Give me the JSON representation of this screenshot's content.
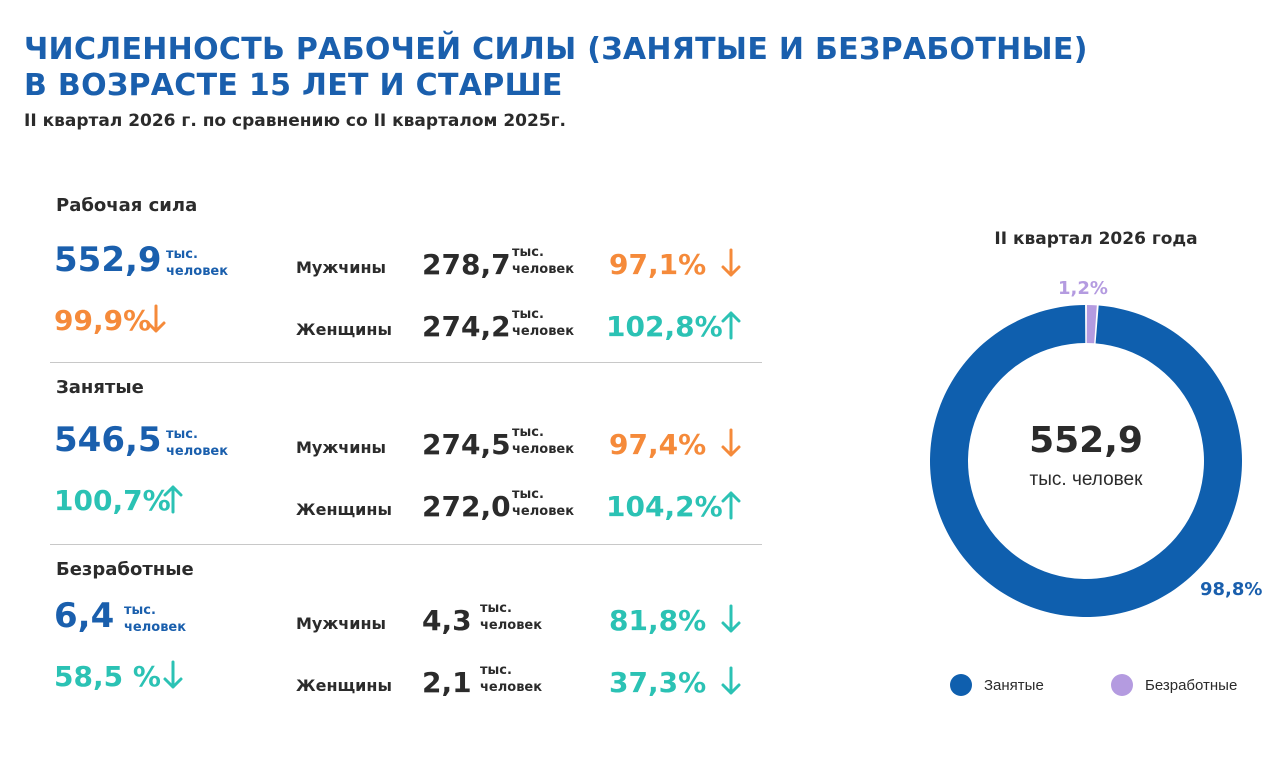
{
  "header": {
    "title_line1": "ЧИСЛЕННОСТЬ РАБОЧЕЙ СИЛЫ (ЗАНЯТЫЕ И БЕЗРАБОТНЫЕ)",
    "title_line2": "В ВОЗРАСТЕ 15 ЛЕТ И СТАРШЕ",
    "subtitle": "II квартал 2026 г. по сравнению со II кварталом 2025г."
  },
  "unit": {
    "line1": "тыс.",
    "line2": "человек"
  },
  "sections": [
    {
      "label": "Рабочая сила",
      "total": "552,9",
      "change": "99,9%",
      "change_dir": "down",
      "change_color": "orange",
      "men": {
        "label": "Мужчины",
        "value": "278,7",
        "change": "97,1%",
        "dir": "down",
        "color": "orange"
      },
      "women": {
        "label": "Женщины",
        "value": "274,2",
        "change": "102,8%",
        "dir": "up",
        "color": "teal"
      }
    },
    {
      "label": "Занятые",
      "total": "546,5",
      "change": "100,7%",
      "change_dir": "up",
      "change_color": "teal",
      "men": {
        "label": "Мужчины",
        "value": "274,5",
        "change": "97,4%",
        "dir": "down",
        "color": "orange"
      },
      "women": {
        "label": "Женщины",
        "value": "272,0",
        "change": "104,2%",
        "dir": "up",
        "color": "teal"
      }
    },
    {
      "label": "Безработные",
      "total": "6,4",
      "change": "58,5 %",
      "change_dir": "down",
      "change_color": "teal",
      "men": {
        "label": "Мужчины",
        "value": "4,3",
        "change": "81,8%",
        "dir": "down",
        "color": "teal"
      },
      "women": {
        "label": "Женщины",
        "value": "2,1",
        "change": "37,3%",
        "dir": "down",
        "color": "teal"
      }
    }
  ],
  "colors": {
    "blue": "#1a5fad",
    "orange": "#f58a3a",
    "teal": "#2bc2b4",
    "donut_employed": "#0f5fae",
    "donut_unemployed": "#b49be0"
  },
  "chart_data": {
    "type": "pie",
    "variant": "donut",
    "title": "II квартал 2026 года",
    "center_value": "552,9",
    "center_unit": "тыс. человек",
    "slices": [
      {
        "name": "Занятые",
        "value": 98.8,
        "label": "98,8%",
        "color": "#0f5fae"
      },
      {
        "name": "Безработные",
        "value": 1.2,
        "label": "1,2%",
        "color": "#b49be0"
      }
    ],
    "legend_position": "bottom"
  }
}
